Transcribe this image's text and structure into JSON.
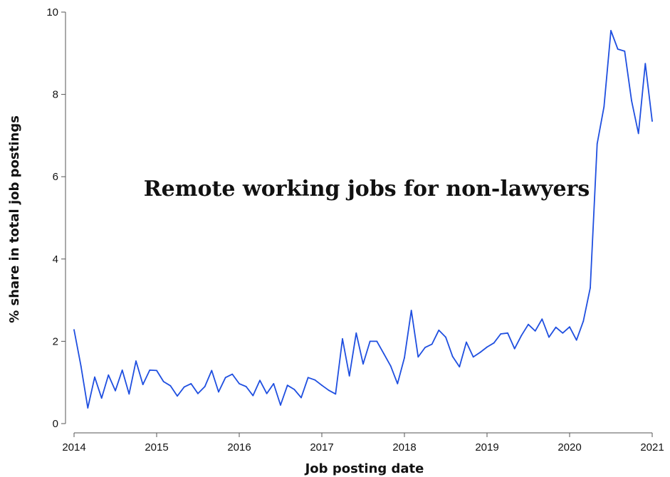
{
  "chart_data": {
    "type": "line",
    "title": "Remote working jobs for non-lawyers",
    "xlabel": "Job posting date",
    "ylabel": "% share in total job postings",
    "ylim": [
      0,
      10
    ],
    "y_ticks": [
      "0",
      "2",
      "4",
      "6",
      "8",
      "10"
    ],
    "x_ticks": [
      "2014",
      "2015",
      "2016",
      "2017",
      "2018",
      "2019",
      "2020",
      "2021"
    ],
    "grid": false,
    "series": [
      {
        "color": "#1f4fe0",
        "x": [
          "2014-01",
          "2014-02",
          "2014-03",
          "2014-04",
          "2014-05",
          "2014-06",
          "2014-07",
          "2014-08",
          "2014-09",
          "2014-10",
          "2014-11",
          "2014-12",
          "2015-01",
          "2015-02",
          "2015-03",
          "2015-04",
          "2015-05",
          "2015-06",
          "2015-07",
          "2015-08",
          "2015-09",
          "2015-10",
          "2015-11",
          "2015-12",
          "2016-01",
          "2016-02",
          "2016-03",
          "2016-04",
          "2016-05",
          "2016-06",
          "2016-07",
          "2016-08",
          "2016-09",
          "2016-10",
          "2016-11",
          "2016-12",
          "2017-01",
          "2017-02",
          "2017-03",
          "2017-04",
          "2017-05",
          "2017-06",
          "2017-07",
          "2017-08",
          "2017-09",
          "2017-10",
          "2017-11",
          "2017-12",
          "2018-01",
          "2018-02",
          "2018-03",
          "2018-04",
          "2018-05",
          "2018-06",
          "2018-07",
          "2018-08",
          "2018-09",
          "2018-10",
          "2018-11",
          "2018-12",
          "2019-01",
          "2019-02",
          "2019-03",
          "2019-04",
          "2019-05",
          "2019-06",
          "2019-07",
          "2019-08",
          "2019-09",
          "2019-10",
          "2019-11",
          "2019-12",
          "2020-01",
          "2020-02",
          "2020-03",
          "2020-04",
          "2020-05",
          "2020-06",
          "2020-07",
          "2020-08",
          "2020-09",
          "2020-10",
          "2020-11",
          "2020-12",
          "2021-01"
        ],
        "values": [
          2.28,
          1.4,
          0.38,
          1.13,
          0.62,
          1.18,
          0.8,
          1.3,
          0.72,
          1.52,
          0.95,
          1.3,
          1.29,
          1.02,
          0.92,
          0.67,
          0.89,
          0.97,
          0.73,
          0.9,
          1.29,
          0.77,
          1.12,
          1.2,
          0.97,
          0.9,
          0.68,
          1.05,
          0.73,
          0.97,
          0.45,
          0.93,
          0.83,
          0.63,
          1.12,
          1.06,
          0.93,
          0.81,
          0.72,
          2.06,
          1.16,
          2.2,
          1.45,
          2.0,
          2.0,
          1.7,
          1.4,
          0.97,
          1.6,
          2.75,
          1.62,
          1.85,
          1.93,
          2.27,
          2.1,
          1.63,
          1.38,
          1.98,
          1.62,
          1.73,
          1.86,
          1.96,
          2.18,
          2.2,
          1.82,
          2.14,
          2.41,
          2.25,
          2.54,
          2.1,
          2.34,
          2.2,
          2.35,
          2.03,
          2.49,
          3.3,
          6.8,
          7.7,
          9.55,
          9.1,
          9.05,
          7.85,
          7.05,
          8.75,
          7.35
        ]
      }
    ]
  }
}
